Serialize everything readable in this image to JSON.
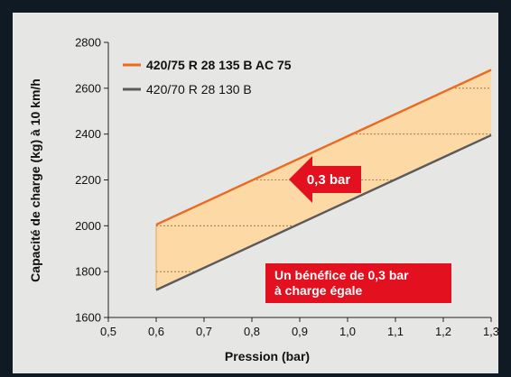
{
  "chart_data": {
    "type": "line",
    "xlabel": "Pression (bar)",
    "ylabel": "Capacité de charge (kg) à 10 km/h",
    "xlim": [
      0.5,
      1.3
    ],
    "ylim": [
      1600,
      2800
    ],
    "x_ticks": [
      "0,5",
      "0,6",
      "0,7",
      "0,8",
      "0,9",
      "1,0",
      "1,1",
      "1,2",
      "1,3"
    ],
    "y_ticks": [
      "1600",
      "1800",
      "2000",
      "2200",
      "2400",
      "2600",
      "2800"
    ],
    "series": [
      {
        "name": "420/75 R 28 135 B AC 75",
        "color": "#ea6a1f",
        "x": [
          0.6,
          1.3
        ],
        "y": [
          2005,
          2680
        ]
      },
      {
        "name": "420/70 R 28 130 B",
        "color": "#5a5a5a",
        "x": [
          0.6,
          1.3
        ],
        "y": [
          1720,
          2395
        ]
      }
    ],
    "band_fill": "#fdd9a6",
    "annotations": {
      "arrow_label": "0,3 bar",
      "box_line1": "Un bénéfice de 0,3 bar",
      "box_line2": "à charge égale",
      "accent": "#e3101f"
    },
    "grid": false,
    "legend_position": "top-left"
  }
}
